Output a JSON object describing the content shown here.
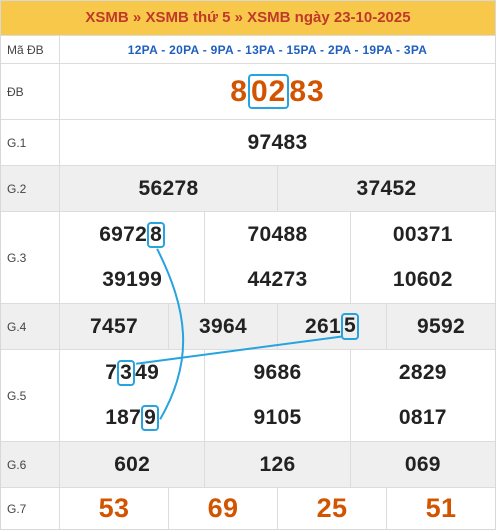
{
  "header": {
    "crumb1": "XSMB",
    "sep1": "»",
    "crumb2": "XSMB thứ 5",
    "sep2": "»",
    "crumb3": "XSMB ngày 23-10-2025"
  },
  "code_row": {
    "label": "Mã ĐB",
    "codes": "12PA - 20PA - 9PA - 13PA - 15PA - 2PA - 19PA - 3PA"
  },
  "special": {
    "label": "ĐB",
    "pre": "8",
    "hl": "02",
    "post": "83"
  },
  "g1": {
    "label": "G.1",
    "values": [
      "97483"
    ]
  },
  "g2": {
    "label": "G.2",
    "values": [
      "56278",
      "37452"
    ]
  },
  "g3": {
    "label": "G.3",
    "row1": [
      {
        "pre": "6972",
        "hl": "8",
        "post": ""
      },
      {
        "pre": "70488",
        "hl": "",
        "post": ""
      },
      {
        "pre": "00371",
        "hl": "",
        "post": ""
      }
    ],
    "row2": [
      "39199",
      "44273",
      "10602"
    ]
  },
  "g4": {
    "label": "G.4",
    "values": [
      {
        "pre": "7457",
        "hl": "",
        "post": ""
      },
      {
        "pre": "3964",
        "hl": "",
        "post": ""
      },
      {
        "pre": "261",
        "hl": "5",
        "post": ""
      },
      {
        "pre": "9592",
        "hl": "",
        "post": ""
      }
    ]
  },
  "g5": {
    "label": "G.5",
    "row1": [
      {
        "pre": "7",
        "hl": "3",
        "post": "49"
      },
      {
        "pre": "9686",
        "hl": "",
        "post": ""
      },
      {
        "pre": "2829",
        "hl": "",
        "post": ""
      }
    ],
    "row2": [
      {
        "pre": "187",
        "hl": "9",
        "post": ""
      },
      {
        "pre": "9105",
        "hl": "",
        "post": ""
      },
      {
        "pre": "0817",
        "hl": "",
        "post": ""
      }
    ]
  },
  "g6": {
    "label": "G.6",
    "values": [
      "602",
      "126",
      "069"
    ]
  },
  "g7": {
    "label": "G.7",
    "values": [
      "53",
      "69",
      "25",
      "51"
    ]
  },
  "colors": {
    "header_bg": "#f7c84a",
    "header_text": "#c0392b",
    "accent_orange": "#d35400",
    "code_blue": "#1f5fbf",
    "highlight_blue": "#27a3e0",
    "row_gray": "#efefef"
  }
}
